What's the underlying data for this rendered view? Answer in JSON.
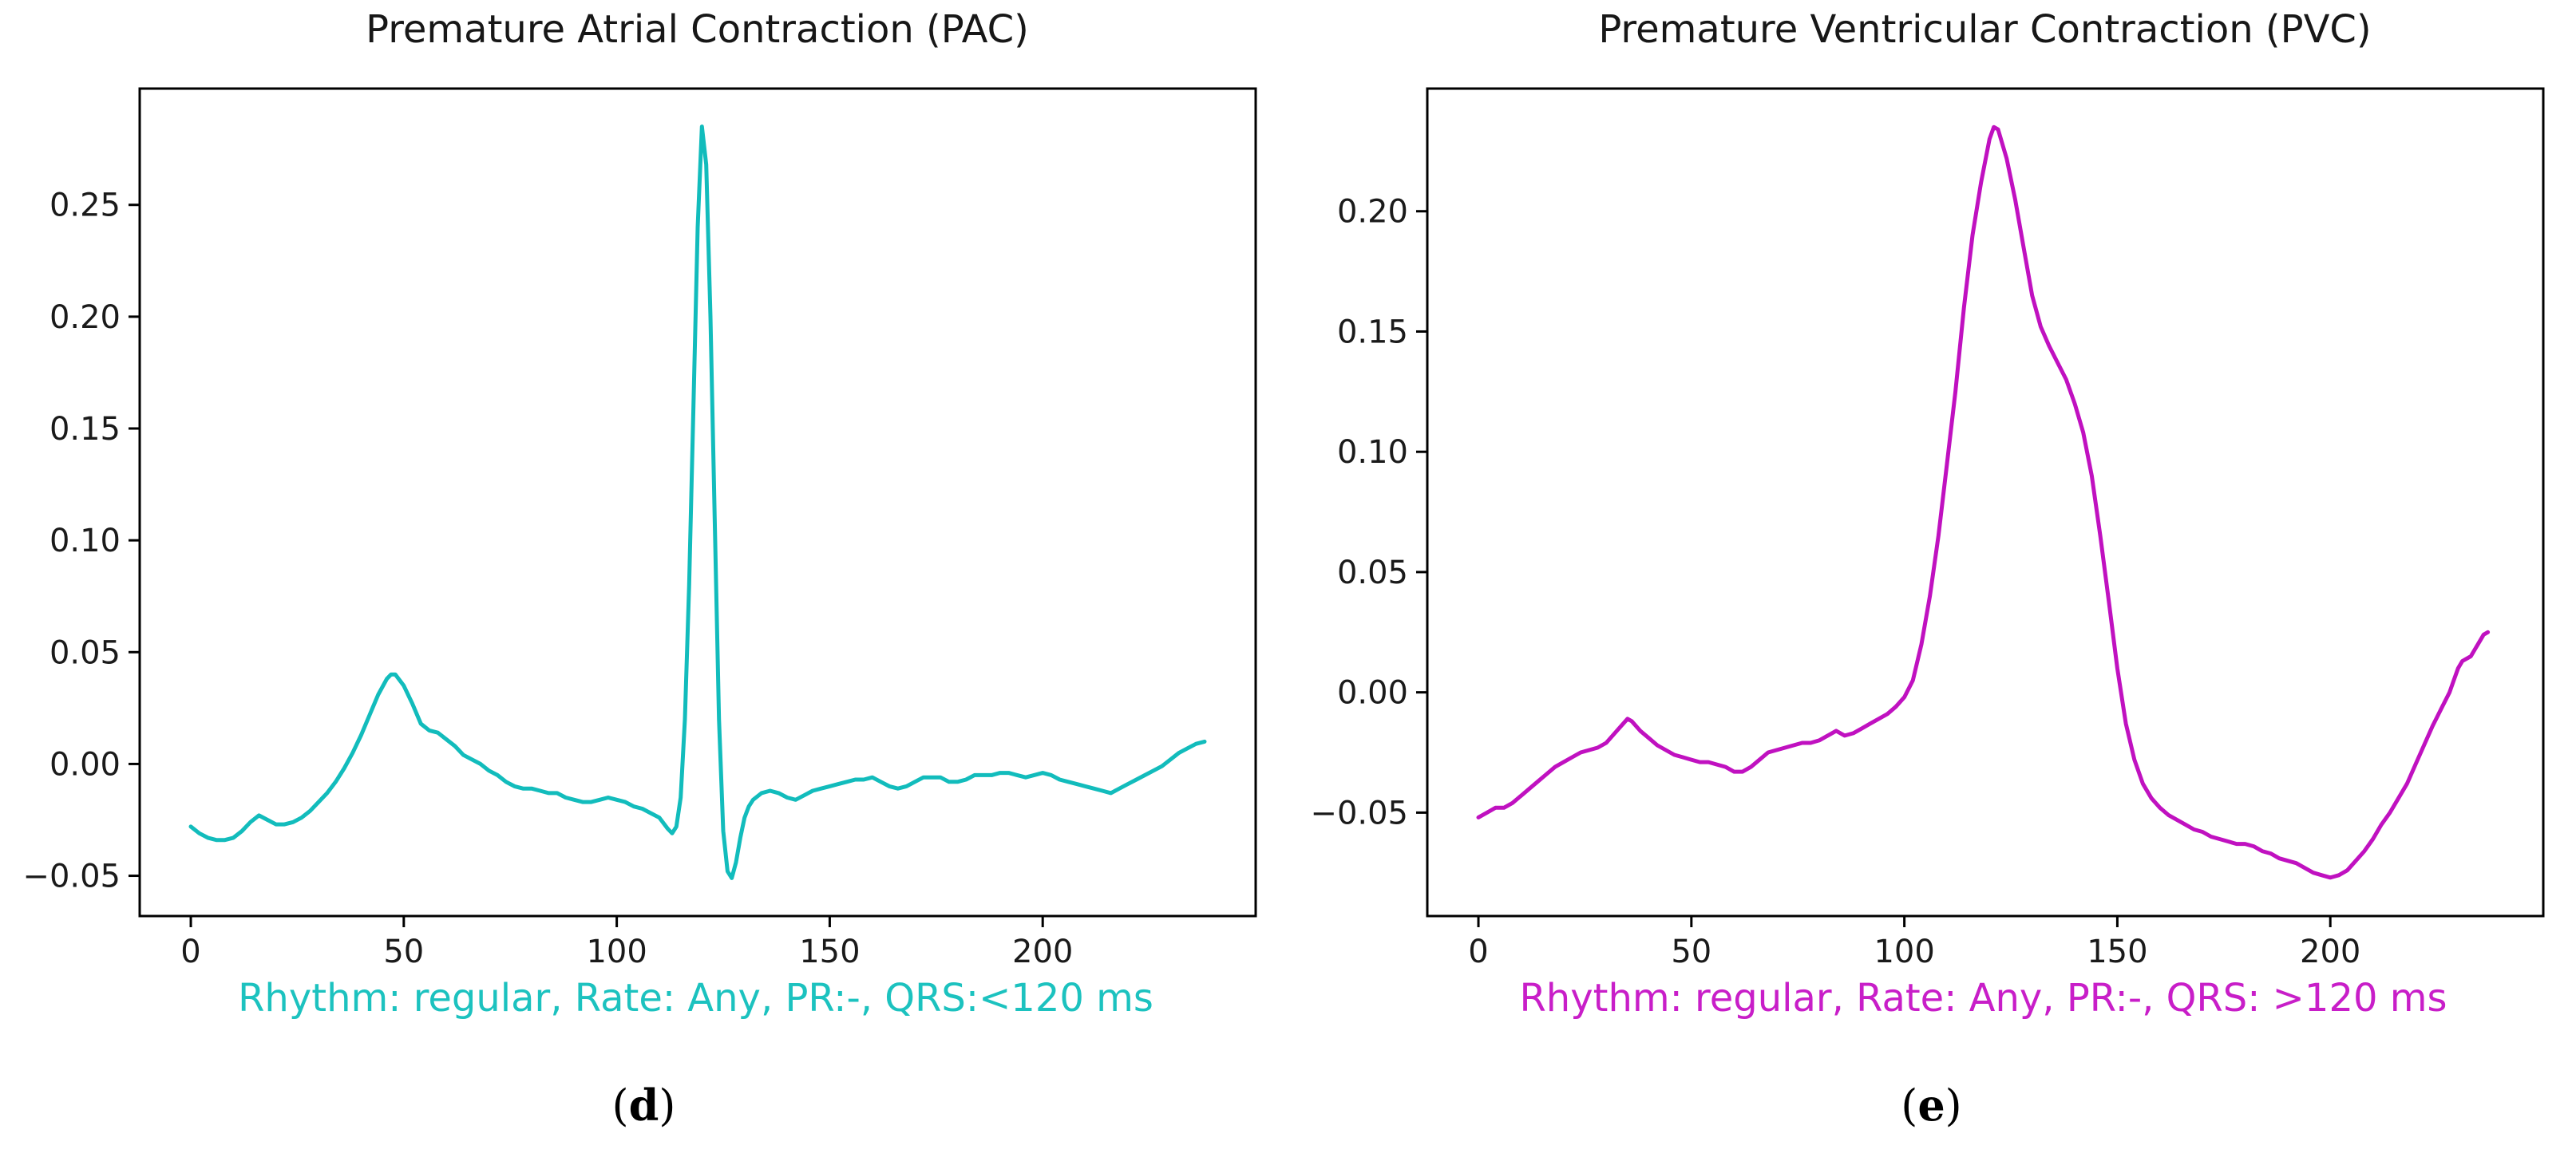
{
  "figure": {
    "background": "#ffffff",
    "label_open": "(",
    "label_close": ")"
  },
  "chart_data": [
    {
      "type": "line",
      "title": "Premature Atrial Contraction (PAC)",
      "caption": "Rhythm: regular, Rate: Any, PR:-, QRS:<120 ms",
      "panel_letter": "d",
      "line_color": "#12bcbc",
      "caption_color": "#1cc2bf",
      "axis_color": "#000000",
      "xlabel": "",
      "ylabel": "",
      "grid": false,
      "legend": null,
      "xlim": [
        -12,
        250
      ],
      "ylim": [
        -0.068,
        0.302
      ],
      "x_ticks": [
        0,
        50,
        100,
        150,
        200
      ],
      "y_ticks": [
        0.25,
        0.2,
        0.15,
        0.1,
        0.05,
        0.0,
        -0.05
      ],
      "points": [
        [
          0,
          -0.028
        ],
        [
          2,
          -0.031
        ],
        [
          4,
          -0.033
        ],
        [
          6,
          -0.034
        ],
        [
          8,
          -0.034
        ],
        [
          10,
          -0.033
        ],
        [
          12,
          -0.03
        ],
        [
          14,
          -0.026
        ],
        [
          16,
          -0.023
        ],
        [
          18,
          -0.025
        ],
        [
          20,
          -0.027
        ],
        [
          22,
          -0.027
        ],
        [
          24,
          -0.026
        ],
        [
          26,
          -0.024
        ],
        [
          28,
          -0.021
        ],
        [
          30,
          -0.017
        ],
        [
          32,
          -0.013
        ],
        [
          34,
          -0.008
        ],
        [
          36,
          -0.002
        ],
        [
          38,
          0.005
        ],
        [
          40,
          0.013
        ],
        [
          42,
          0.022
        ],
        [
          44,
          0.031
        ],
        [
          46,
          0.038
        ],
        [
          47,
          0.04
        ],
        [
          48,
          0.04
        ],
        [
          50,
          0.035
        ],
        [
          52,
          0.027
        ],
        [
          54,
          0.018
        ],
        [
          56,
          0.015
        ],
        [
          58,
          0.014
        ],
        [
          60,
          0.011
        ],
        [
          62,
          0.008
        ],
        [
          64,
          0.004
        ],
        [
          66,
          0.002
        ],
        [
          68,
          0.0
        ],
        [
          70,
          -0.003
        ],
        [
          72,
          -0.005
        ],
        [
          74,
          -0.008
        ],
        [
          76,
          -0.01
        ],
        [
          78,
          -0.011
        ],
        [
          80,
          -0.011
        ],
        [
          82,
          -0.012
        ],
        [
          84,
          -0.013
        ],
        [
          86,
          -0.013
        ],
        [
          88,
          -0.015
        ],
        [
          90,
          -0.016
        ],
        [
          92,
          -0.017
        ],
        [
          94,
          -0.017
        ],
        [
          96,
          -0.016
        ],
        [
          98,
          -0.015
        ],
        [
          100,
          -0.016
        ],
        [
          102,
          -0.017
        ],
        [
          104,
          -0.019
        ],
        [
          106,
          -0.02
        ],
        [
          108,
          -0.022
        ],
        [
          110,
          -0.024
        ],
        [
          112,
          -0.029
        ],
        [
          113,
          -0.031
        ],
        [
          114,
          -0.028
        ],
        [
          115,
          -0.015
        ],
        [
          116,
          0.02
        ],
        [
          117,
          0.08
        ],
        [
          118,
          0.16
        ],
        [
          119,
          0.24
        ],
        [
          120,
          0.285
        ],
        [
          121,
          0.268
        ],
        [
          122,
          0.2
        ],
        [
          123,
          0.11
        ],
        [
          124,
          0.02
        ],
        [
          125,
          -0.03
        ],
        [
          126,
          -0.048
        ],
        [
          127,
          -0.051
        ],
        [
          128,
          -0.044
        ],
        [
          129,
          -0.033
        ],
        [
          130,
          -0.024
        ],
        [
          131,
          -0.019
        ],
        [
          132,
          -0.016
        ],
        [
          134,
          -0.013
        ],
        [
          136,
          -0.012
        ],
        [
          138,
          -0.013
        ],
        [
          140,
          -0.015
        ],
        [
          142,
          -0.016
        ],
        [
          144,
          -0.014
        ],
        [
          146,
          -0.012
        ],
        [
          148,
          -0.011
        ],
        [
          150,
          -0.01
        ],
        [
          152,
          -0.009
        ],
        [
          154,
          -0.008
        ],
        [
          156,
          -0.007
        ],
        [
          158,
          -0.007
        ],
        [
          160,
          -0.006
        ],
        [
          162,
          -0.008
        ],
        [
          164,
          -0.01
        ],
        [
          166,
          -0.011
        ],
        [
          168,
          -0.01
        ],
        [
          170,
          -0.008
        ],
        [
          172,
          -0.006
        ],
        [
          174,
          -0.006
        ],
        [
          176,
          -0.006
        ],
        [
          178,
          -0.008
        ],
        [
          180,
          -0.008
        ],
        [
          182,
          -0.007
        ],
        [
          184,
          -0.005
        ],
        [
          186,
          -0.005
        ],
        [
          188,
          -0.005
        ],
        [
          190,
          -0.004
        ],
        [
          192,
          -0.004
        ],
        [
          194,
          -0.005
        ],
        [
          196,
          -0.006
        ],
        [
          198,
          -0.005
        ],
        [
          200,
          -0.004
        ],
        [
          202,
          -0.005
        ],
        [
          204,
          -0.007
        ],
        [
          206,
          -0.008
        ],
        [
          208,
          -0.009
        ],
        [
          210,
          -0.01
        ],
        [
          212,
          -0.011
        ],
        [
          214,
          -0.012
        ],
        [
          216,
          -0.013
        ],
        [
          218,
          -0.011
        ],
        [
          220,
          -0.009
        ],
        [
          222,
          -0.007
        ],
        [
          224,
          -0.005
        ],
        [
          226,
          -0.003
        ],
        [
          228,
          -0.001
        ],
        [
          230,
          0.002
        ],
        [
          232,
          0.005
        ],
        [
          234,
          0.007
        ],
        [
          236,
          0.009
        ],
        [
          238,
          0.01
        ]
      ]
    },
    {
      "type": "line",
      "title": "Premature Ventricular Contraction (PVC)",
      "caption": "Rhythm: regular, Rate: Any, PR:-, QRS: >120 ms",
      "panel_letter": "e",
      "line_color": "#c011c0",
      "caption_color": "#c81ec8",
      "axis_color": "#000000",
      "xlabel": "",
      "ylabel": "",
      "grid": false,
      "legend": null,
      "xlim": [
        -12,
        250
      ],
      "ylim": [
        -0.093,
        0.251
      ],
      "x_ticks": [
        0,
        50,
        100,
        150,
        200
      ],
      "y_ticks": [
        0.2,
        0.15,
        0.1,
        0.05,
        0.0,
        -0.05
      ],
      "points": [
        [
          0,
          -0.052
        ],
        [
          2,
          -0.05
        ],
        [
          4,
          -0.048
        ],
        [
          6,
          -0.048
        ],
        [
          8,
          -0.046
        ],
        [
          10,
          -0.043
        ],
        [
          12,
          -0.04
        ],
        [
          14,
          -0.037
        ],
        [
          16,
          -0.034
        ],
        [
          18,
          -0.031
        ],
        [
          20,
          -0.029
        ],
        [
          22,
          -0.027
        ],
        [
          24,
          -0.025
        ],
        [
          26,
          -0.024
        ],
        [
          28,
          -0.023
        ],
        [
          30,
          -0.021
        ],
        [
          32,
          -0.017
        ],
        [
          34,
          -0.013
        ],
        [
          35,
          -0.011
        ],
        [
          36,
          -0.012
        ],
        [
          38,
          -0.016
        ],
        [
          40,
          -0.019
        ],
        [
          42,
          -0.022
        ],
        [
          44,
          -0.024
        ],
        [
          46,
          -0.026
        ],
        [
          48,
          -0.027
        ],
        [
          50,
          -0.028
        ],
        [
          52,
          -0.029
        ],
        [
          54,
          -0.029
        ],
        [
          56,
          -0.03
        ],
        [
          58,
          -0.031
        ],
        [
          60,
          -0.033
        ],
        [
          62,
          -0.033
        ],
        [
          64,
          -0.031
        ],
        [
          66,
          -0.028
        ],
        [
          68,
          -0.025
        ],
        [
          70,
          -0.024
        ],
        [
          72,
          -0.023
        ],
        [
          74,
          -0.022
        ],
        [
          76,
          -0.021
        ],
        [
          78,
          -0.021
        ],
        [
          80,
          -0.02
        ],
        [
          82,
          -0.018
        ],
        [
          84,
          -0.016
        ],
        [
          86,
          -0.018
        ],
        [
          88,
          -0.017
        ],
        [
          90,
          -0.015
        ],
        [
          92,
          -0.013
        ],
        [
          94,
          -0.011
        ],
        [
          96,
          -0.009
        ],
        [
          98,
          -0.006
        ],
        [
          100,
          -0.002
        ],
        [
          102,
          0.005
        ],
        [
          104,
          0.02
        ],
        [
          106,
          0.04
        ],
        [
          108,
          0.065
        ],
        [
          110,
          0.095
        ],
        [
          112,
          0.125
        ],
        [
          114,
          0.16
        ],
        [
          116,
          0.19
        ],
        [
          118,
          0.212
        ],
        [
          120,
          0.23
        ],
        [
          121,
          0.235
        ],
        [
          122,
          0.234
        ],
        [
          124,
          0.222
        ],
        [
          126,
          0.205
        ],
        [
          128,
          0.185
        ],
        [
          130,
          0.165
        ],
        [
          132,
          0.152
        ],
        [
          134,
          0.144
        ],
        [
          136,
          0.137
        ],
        [
          138,
          0.13
        ],
        [
          140,
          0.12
        ],
        [
          142,
          0.108
        ],
        [
          144,
          0.09
        ],
        [
          146,
          0.065
        ],
        [
          148,
          0.038
        ],
        [
          150,
          0.01
        ],
        [
          152,
          -0.013
        ],
        [
          154,
          -0.028
        ],
        [
          156,
          -0.038
        ],
        [
          158,
          -0.044
        ],
        [
          160,
          -0.048
        ],
        [
          162,
          -0.051
        ],
        [
          164,
          -0.053
        ],
        [
          166,
          -0.055
        ],
        [
          168,
          -0.057
        ],
        [
          170,
          -0.058
        ],
        [
          172,
          -0.06
        ],
        [
          174,
          -0.061
        ],
        [
          176,
          -0.062
        ],
        [
          178,
          -0.063
        ],
        [
          180,
          -0.063
        ],
        [
          182,
          -0.064
        ],
        [
          184,
          -0.066
        ],
        [
          186,
          -0.067
        ],
        [
          188,
          -0.069
        ],
        [
          190,
          -0.07
        ],
        [
          192,
          -0.071
        ],
        [
          194,
          -0.073
        ],
        [
          196,
          -0.075
        ],
        [
          198,
          -0.076
        ],
        [
          200,
          -0.077
        ],
        [
          202,
          -0.076
        ],
        [
          204,
          -0.074
        ],
        [
          206,
          -0.07
        ],
        [
          208,
          -0.066
        ],
        [
          210,
          -0.061
        ],
        [
          212,
          -0.055
        ],
        [
          214,
          -0.05
        ],
        [
          216,
          -0.044
        ],
        [
          218,
          -0.038
        ],
        [
          220,
          -0.03
        ],
        [
          222,
          -0.022
        ],
        [
          224,
          -0.014
        ],
        [
          226,
          -0.007
        ],
        [
          228,
          0.0
        ],
        [
          229,
          0.005
        ],
        [
          230,
          0.01
        ],
        [
          231,
          0.013
        ],
        [
          232,
          0.014
        ],
        [
          233,
          0.015
        ],
        [
          234,
          0.018
        ],
        [
          235,
          0.021
        ],
        [
          236,
          0.024
        ],
        [
          237,
          0.025
        ]
      ]
    }
  ]
}
